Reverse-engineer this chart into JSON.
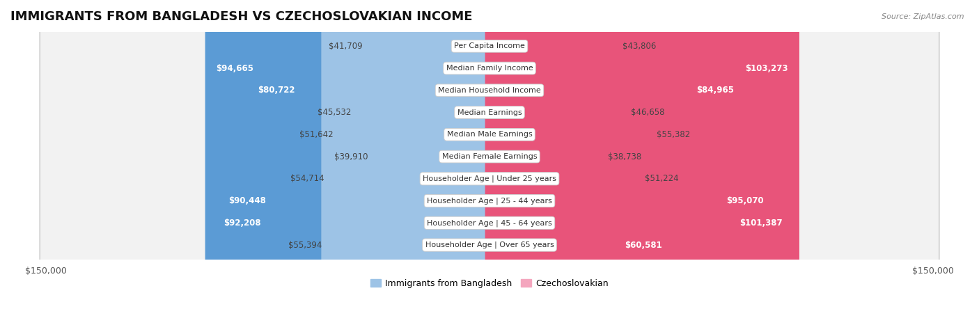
{
  "title": "IMMIGRANTS FROM BANGLADESH VS CZECHOSLOVAKIAN INCOME",
  "source": "Source: ZipAtlas.com",
  "categories": [
    "Per Capita Income",
    "Median Family Income",
    "Median Household Income",
    "Median Earnings",
    "Median Male Earnings",
    "Median Female Earnings",
    "Householder Age | Under 25 years",
    "Householder Age | 25 - 44 years",
    "Householder Age | 45 - 64 years",
    "Householder Age | Over 65 years"
  ],
  "bangladesh_values": [
    41709,
    94665,
    80722,
    45532,
    51642,
    39910,
    54714,
    90448,
    92208,
    55394
  ],
  "czechoslovakian_values": [
    43806,
    103273,
    84965,
    46658,
    55382,
    38738,
    51224,
    95070,
    101387,
    60581
  ],
  "bangladesh_color_dark": "#5b9bd5",
  "bangladesh_color_light": "#9dc3e6",
  "czechoslovakian_color_dark": "#e8547a",
  "czechoslovakian_color_light": "#f4a6be",
  "row_bg_color": "#f2f2f2",
  "row_border_color": "#d0d0d0",
  "max_value": 150000,
  "legend_bangladesh": "Immigrants from Bangladesh",
  "legend_czechoslovakian": "Czechoslovakian",
  "background_color": "#ffffff",
  "title_fontsize": 13,
  "value_fontsize": 8.5,
  "cat_fontsize": 8,
  "threshold_inside": 60000
}
